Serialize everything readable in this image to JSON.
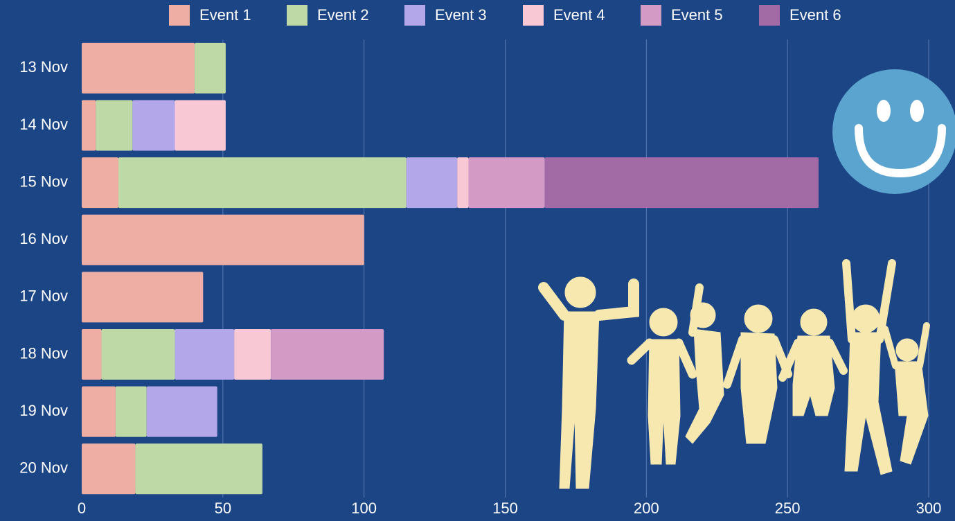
{
  "chart_data": {
    "type": "stacked-barh",
    "categories": [
      "13 Nov",
      "14 Nov",
      "15 Nov",
      "16 Nov",
      "17 Nov",
      "18 Nov",
      "19 Nov",
      "20 Nov"
    ],
    "series": [
      {
        "name": "Event 1",
        "color": "#efaea4",
        "values": [
          40,
          5,
          13,
          100,
          43,
          7,
          12,
          19
        ]
      },
      {
        "name": "Event 2",
        "color": "#bfd9a6",
        "values": [
          11,
          13,
          102,
          null,
          null,
          26,
          11,
          45
        ]
      },
      {
        "name": "Event 3",
        "color": "#b3a7ea",
        "values": [
          null,
          15,
          18,
          null,
          null,
          21,
          25,
          null
        ]
      },
      {
        "name": "Event 4",
        "color": "#f9c8d5",
        "values": [
          null,
          18,
          4,
          null,
          null,
          13,
          null,
          null
        ]
      },
      {
        "name": "Event 5",
        "color": "#d39ac5",
        "values": [
          null,
          null,
          27,
          null,
          null,
          40,
          null,
          null
        ]
      },
      {
        "name": "Event 6",
        "color": "#a26ba6",
        "values": [
          null,
          null,
          97,
          null,
          null,
          null,
          null,
          null
        ]
      }
    ],
    "xlim": [
      0,
      300
    ],
    "xticks": [
      0,
      50,
      100,
      150,
      200,
      250,
      300
    ],
    "grid": true,
    "legend": "top"
  }
}
